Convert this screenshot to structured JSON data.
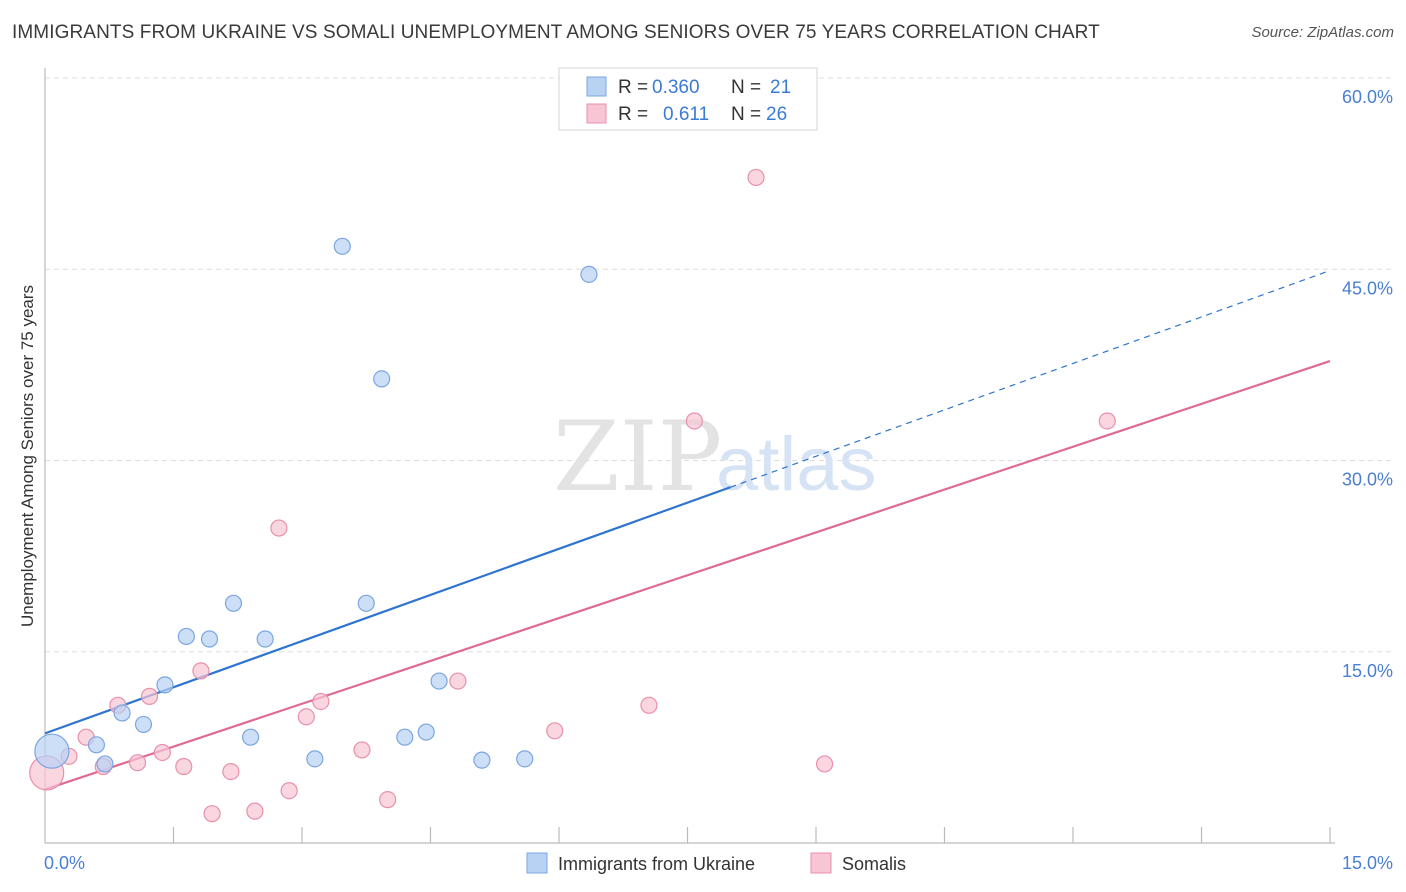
{
  "title": "IMMIGRANTS FROM UKRAINE VS SOMALI UNEMPLOYMENT AMONG SENIORS OVER 75 YEARS CORRELATION CHART",
  "source": "Source: ZipAtlas.com",
  "watermark": {
    "zip": "ZIP",
    "atlas": "atlas"
  },
  "colors": {
    "ukraine_fill": "#b8d2f4",
    "ukraine_stroke": "#7aa6e0",
    "ukraine_line": "#2e74d0",
    "somali_fill": "#f8c5d4",
    "somali_stroke": "#e890aa",
    "somali_line": "#e06a93",
    "tick": "#4a7fd0",
    "grid": "#dddddd"
  },
  "legend": {
    "rows": [
      {
        "r_label": "R =",
        "r_value": "0.360",
        "n_label": "N =",
        "n_value": "21"
      },
      {
        "r_label": "R =",
        "r_value": "0.611",
        "n_label": "N =",
        "n_value": "26"
      }
    ]
  },
  "chart_data": {
    "type": "scatter",
    "xlabel": "",
    "ylabel": "Unemployment Among Seniors over 75 years",
    "xlim": [
      0,
      15
    ],
    "ylim": [
      0,
      60
    ],
    "x_tick_labels": {
      "left": "0.0%",
      "right": "15.0%"
    },
    "y_ticks": [
      {
        "value": 15,
        "label": "15.0%"
      },
      {
        "value": 30,
        "label": "30.0%"
      },
      {
        "value": 45,
        "label": "45.0%"
      },
      {
        "value": 60,
        "label": "60.0%"
      }
    ],
    "series": [
      {
        "name": "Immigrants from Ukraine",
        "r": 0.36,
        "n": 21,
        "trend": {
          "x0": 0,
          "y0": 8.6,
          "x1": 8.0,
          "y1": 27.9,
          "dash_to_x": 15.0,
          "dash_to_y": 44.9
        },
        "points": [
          {
            "x": 0.08,
            "y": 7.2,
            "big": true
          },
          {
            "x": 0.6,
            "y": 7.7
          },
          {
            "x": 0.7,
            "y": 6.2
          },
          {
            "x": 0.9,
            "y": 10.2
          },
          {
            "x": 1.15,
            "y": 9.3
          },
          {
            "x": 1.4,
            "y": 12.4
          },
          {
            "x": 1.65,
            "y": 16.2
          },
          {
            "x": 1.92,
            "y": 16.0
          },
          {
            "x": 2.2,
            "y": 18.8
          },
          {
            "x": 2.4,
            "y": 8.3
          },
          {
            "x": 2.57,
            "y": 16.0
          },
          {
            "x": 3.15,
            "y": 6.6
          },
          {
            "x": 3.47,
            "y": 46.8
          },
          {
            "x": 3.75,
            "y": 18.8
          },
          {
            "x": 3.93,
            "y": 36.4
          },
          {
            "x": 4.2,
            "y": 8.3
          },
          {
            "x": 4.45,
            "y": 8.7
          },
          {
            "x": 4.6,
            "y": 12.7
          },
          {
            "x": 5.1,
            "y": 6.5
          },
          {
            "x": 5.6,
            "y": 6.6
          },
          {
            "x": 6.35,
            "y": 44.6
          }
        ]
      },
      {
        "name": "Somalis",
        "r": 0.611,
        "n": 26,
        "trend": {
          "x0": 0,
          "y0": 4.2,
          "x1": 15.0,
          "y1": 37.8
        },
        "points": [
          {
            "x": 0.02,
            "y": 5.5,
            "big": true
          },
          {
            "x": 0.28,
            "y": 6.8
          },
          {
            "x": 0.48,
            "y": 8.3
          },
          {
            "x": 0.68,
            "y": 6.0
          },
          {
            "x": 0.85,
            "y": 10.8
          },
          {
            "x": 1.08,
            "y": 6.3
          },
          {
            "x": 1.22,
            "y": 11.5
          },
          {
            "x": 1.37,
            "y": 7.1
          },
          {
            "x": 1.62,
            "y": 6.0
          },
          {
            "x": 1.82,
            "y": 13.5
          },
          {
            "x": 1.95,
            "y": 2.3
          },
          {
            "x": 2.17,
            "y": 5.6
          },
          {
            "x": 2.45,
            "y": 2.5
          },
          {
            "x": 2.73,
            "y": 24.7
          },
          {
            "x": 2.85,
            "y": 4.1
          },
          {
            "x": 3.05,
            "y": 9.9
          },
          {
            "x": 3.22,
            "y": 11.1
          },
          {
            "x": 3.7,
            "y": 7.3
          },
          {
            "x": 4.0,
            "y": 3.4
          },
          {
            "x": 4.82,
            "y": 12.7
          },
          {
            "x": 5.95,
            "y": 8.8
          },
          {
            "x": 7.05,
            "y": 10.8
          },
          {
            "x": 7.58,
            "y": 33.1
          },
          {
            "x": 8.3,
            "y": 52.2
          },
          {
            "x": 9.1,
            "y": 6.2
          },
          {
            "x": 12.4,
            "y": 33.1
          }
        ]
      }
    ]
  }
}
